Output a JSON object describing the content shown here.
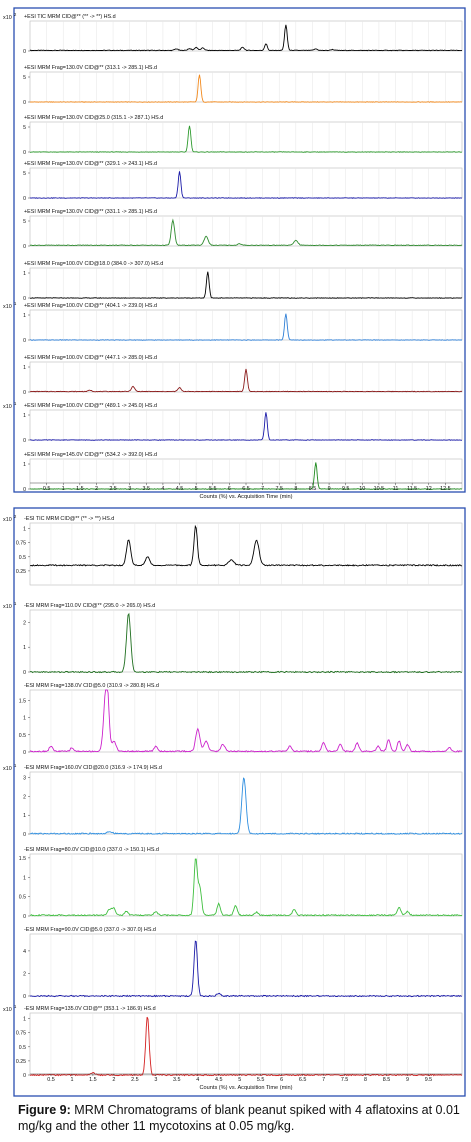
{
  "caption": {
    "label": "Figure 9:",
    "text": "MRM Chromatograms of blank peanut spiked with 4 aflatoxins at 0.01 mg/kg and the other 11 mycotoxins at 0.05 mg/kg."
  },
  "chart_data": [
    {
      "type": "line",
      "group": "positive",
      "xlabel": "Counts (%) vs. Acquisition Time (min)",
      "xlim": [
        0,
        13.0
      ],
      "xticks": [
        0.5,
        1,
        1.5,
        2,
        2.5,
        3,
        3.5,
        4,
        4.5,
        5,
        5.5,
        6,
        6.5,
        7,
        7.5,
        8,
        8.5,
        9,
        9.5,
        10,
        10.5,
        11,
        11.5,
        12,
        12.5
      ],
      "grid": true,
      "panels": [
        {
          "title": "+ESI TIC MRM CID@** (** -> **) HS.d",
          "exponent": "2",
          "color": "#000000",
          "ylim": [
            0,
            1
          ],
          "yticks": [
            0
          ],
          "baseline": 0.02,
          "peaks": [
            [
              4.4,
              0.05,
              0.05
            ],
            [
              4.8,
              0.06,
              0.05
            ],
            [
              5.0,
              0.1,
              0.05
            ],
            [
              5.2,
              0.08,
              0.05
            ],
            [
              6.4,
              0.1,
              0.05
            ],
            [
              7.1,
              0.22,
              0.04
            ],
            [
              7.7,
              0.85,
              0.04
            ],
            [
              8.6,
              0.05,
              0.05
            ],
            [
              9.1,
              0.03,
              0.05
            ]
          ]
        },
        {
          "title": "+ESI MRM Frag=130.0V CID@** (313.1 -> 285.1) HS.d",
          "exponent": "",
          "color": "#f28a1e",
          "ylim": [
            0,
            6
          ],
          "yticks": [
            0,
            5
          ],
          "baseline": 0.0,
          "peaks": [
            [
              5.1,
              5.5,
              0.04
            ]
          ]
        },
        {
          "title": "+ESI MRM Frag=130.0V CID@25.0 (315.1 -> 287.1) HS.d",
          "exponent": "",
          "color": "#2e9a2e",
          "ylim": [
            0,
            6
          ],
          "yticks": [
            0,
            5
          ],
          "baseline": 0.0,
          "peaks": [
            [
              4.8,
              5.3,
              0.04
            ]
          ]
        },
        {
          "title": "+ESI MRM Frag=130.0V CID@** (329.1 -> 243.1) HS.d",
          "exponent": "",
          "color": "#1a1aa8",
          "ylim": [
            0,
            6
          ],
          "yticks": [
            0,
            5
          ],
          "baseline": 0.0,
          "peaks": [
            [
              4.5,
              5.3,
              0.04
            ]
          ]
        },
        {
          "title": "+ESI MRM Frag=130.0V CID@** (331.1 -> 285.1) HS.d",
          "exponent": "",
          "color": "#2e8b2e",
          "ylim": [
            0,
            6
          ],
          "yticks": [
            0,
            5
          ],
          "baseline": 0.15,
          "peaks": [
            [
              4.3,
              5.0,
              0.05
            ],
            [
              5.3,
              1.8,
              0.06
            ],
            [
              8.0,
              1.0,
              0.06
            ],
            [
              6.3,
              0.3,
              0.05
            ]
          ]
        },
        {
          "title": "+ESI MRM Frag=100.0V CID@18.0 (384.0 -> 307.0) HS.d",
          "exponent": "",
          "color": "#000000",
          "ylim": [
            0,
            1.2
          ],
          "yticks": [
            0,
            1
          ],
          "baseline": 0.0,
          "peaks": [
            [
              5.35,
              1.05,
              0.04
            ]
          ]
        },
        {
          "title": "+ESI MRM Frag=100.0V CID@** (404.1 -> 239.0) HS.d",
          "exponent": "1",
          "color": "#2f7fd6",
          "ylim": [
            0,
            1.2
          ],
          "yticks": [
            0,
            1
          ],
          "baseline": 0.0,
          "peaks": [
            [
              7.7,
              1.05,
              0.04
            ]
          ]
        },
        {
          "title": "+ESI MRM Frag=100.0V CID@** (447.1 -> 285.0) HS.d",
          "exponent": "",
          "color": "#8b1a1a",
          "ylim": [
            0,
            1.2
          ],
          "yticks": [
            0,
            1
          ],
          "baseline": 0.02,
          "peaks": [
            [
              6.5,
              0.9,
              0.04
            ],
            [
              3.1,
              0.2,
              0.05
            ],
            [
              4.5,
              0.15,
              0.05
            ],
            [
              1.8,
              0.05,
              0.05
            ]
          ]
        },
        {
          "title": "+ESI MRM Frag=100.0V CID@** (489.1 -> 245.0) HS.d",
          "exponent": "1",
          "color": "#1a1aa8",
          "ylim": [
            0,
            1.2
          ],
          "yticks": [
            0,
            1
          ],
          "baseline": 0.0,
          "peaks": [
            [
              7.1,
              1.1,
              0.04
            ]
          ]
        },
        {
          "title": "+ESI MRM Frag=145.0V CID@** (534.2 -> 392.0) HS.d",
          "exponent": "",
          "color": "#1e8a1e",
          "ylim": [
            0,
            1.2
          ],
          "yticks": [
            0,
            1
          ],
          "baseline": 0.0,
          "peaks": [
            [
              8.6,
              1.05,
              0.04
            ]
          ]
        }
      ]
    },
    {
      "type": "line",
      "group": "negative",
      "xlabel": "Counts (%) vs. Acquisition Time (min)",
      "xlim": [
        0,
        10.3
      ],
      "xticks": [
        0.5,
        1,
        1.5,
        2,
        2.5,
        3,
        3.5,
        4,
        4.5,
        5,
        5.5,
        6,
        6.5,
        7,
        7.5,
        8,
        8.5,
        9,
        9.5
      ],
      "grid": true,
      "panels": [
        {
          "title": "-ESI TIC MRM CID@** (** -> **) HS.d",
          "exponent": "2",
          "color": "#000000",
          "ylim": [
            0,
            1.1
          ],
          "yticks": [
            0.25,
            0.5,
            0.75,
            1
          ],
          "baseline": 0.35,
          "peaks": [
            [
              2.35,
              0.45,
              0.05
            ],
            [
              2.8,
              0.15,
              0.05
            ],
            [
              3.95,
              0.7,
              0.04
            ],
            [
              4.8,
              0.1,
              0.06
            ],
            [
              5.4,
              0.45,
              0.06
            ]
          ]
        },
        {
          "title": "-ESI MRM Frag=110.0V CID@** (295.0 -> 265.0) HS.d",
          "exponent": "1",
          "color": "#1e6e1e",
          "ylim": [
            0,
            2.5
          ],
          "yticks": [
            0,
            1,
            2
          ],
          "baseline": 0.0,
          "peaks": [
            [
              2.35,
              2.35,
              0.05
            ]
          ]
        },
        {
          "title": "-ESI MRM Frag=138.0V CID@5.0 (310.9 -> 280.8) HS.d",
          "exponent": "",
          "color": "#cc22cc",
          "ylim": [
            0,
            1.8
          ],
          "yticks": [
            0,
            0.5,
            1,
            1.5
          ],
          "baseline": 0.02,
          "peaks": [
            [
              1.8,
              1.4,
              0.05
            ],
            [
              1.85,
              1.1,
              0.04
            ],
            [
              2.0,
              0.3,
              0.05
            ],
            [
              4.0,
              0.65,
              0.05
            ],
            [
              4.2,
              0.3,
              0.05
            ],
            [
              4.6,
              0.2,
              0.05
            ],
            [
              0.5,
              0.15,
              0.04
            ],
            [
              1.0,
              0.1,
              0.04
            ],
            [
              3.0,
              0.15,
              0.04
            ],
            [
              6.2,
              0.15,
              0.04
            ],
            [
              7.0,
              0.25,
              0.04
            ],
            [
              7.4,
              0.2,
              0.04
            ],
            [
              7.8,
              0.25,
              0.04
            ],
            [
              8.3,
              0.15,
              0.04
            ],
            [
              8.55,
              0.35,
              0.04
            ],
            [
              8.8,
              0.3,
              0.04
            ],
            [
              9.0,
              0.2,
              0.04
            ],
            [
              10.0,
              0.1,
              0.04
            ]
          ]
        },
        {
          "title": "-ESI MRM Frag=160.0V CID@20.0 (316.9 -> 174.9) HS.d",
          "exponent": "1",
          "color": "#2f8fe0",
          "ylim": [
            0,
            3.3
          ],
          "yticks": [
            0,
            1,
            2,
            3
          ],
          "baseline": 0.02,
          "peaks": [
            [
              5.1,
              3.0,
              0.05
            ],
            [
              1.9,
              0.1,
              0.06
            ]
          ]
        },
        {
          "title": "-ESI MRM Frag=80.0V CID@10.0 (337.0 -> 150.1) HS.d",
          "exponent": "",
          "color": "#3fbf3f",
          "ylim": [
            0,
            1.6
          ],
          "yticks": [
            0,
            0.5,
            1,
            1.5
          ],
          "baseline": 0.02,
          "peaks": [
            [
              3.95,
              1.45,
              0.04
            ],
            [
              4.05,
              0.7,
              0.04
            ],
            [
              4.5,
              0.3,
              0.04
            ],
            [
              4.9,
              0.25,
              0.04
            ],
            [
              1.9,
              0.15,
              0.05
            ],
            [
              2.0,
              0.18,
              0.04
            ],
            [
              2.3,
              0.1,
              0.04
            ],
            [
              3.0,
              0.1,
              0.04
            ],
            [
              5.4,
              0.08,
              0.04
            ],
            [
              6.3,
              0.15,
              0.04
            ],
            [
              8.8,
              0.2,
              0.04
            ],
            [
              9.0,
              0.1,
              0.04
            ]
          ]
        },
        {
          "title": "-ESI MRM Frag=90.0V CID@5.0 (337.0 -> 307.0) HS.d",
          "exponent": "",
          "color": "#1a1aa8",
          "ylim": [
            0,
            5.5
          ],
          "yticks": [
            0,
            2,
            4
          ],
          "baseline": 0.0,
          "peaks": [
            [
              3.95,
              5.0,
              0.04
            ],
            [
              4.5,
              0.2,
              0.05
            ]
          ]
        },
        {
          "title": "-ESI MRM Frag=135.0V CID@** (353.1 -> 186.9) HS.d",
          "exponent": "1",
          "color": "#d42020",
          "ylim": [
            0,
            1.1
          ],
          "yticks": [
            0,
            0.25,
            0.5,
            0.75,
            1
          ],
          "baseline": 0.0,
          "peaks": [
            [
              2.8,
              1.05,
              0.04
            ],
            [
              1.5,
              0.04,
              0.05
            ]
          ]
        }
      ]
    }
  ]
}
